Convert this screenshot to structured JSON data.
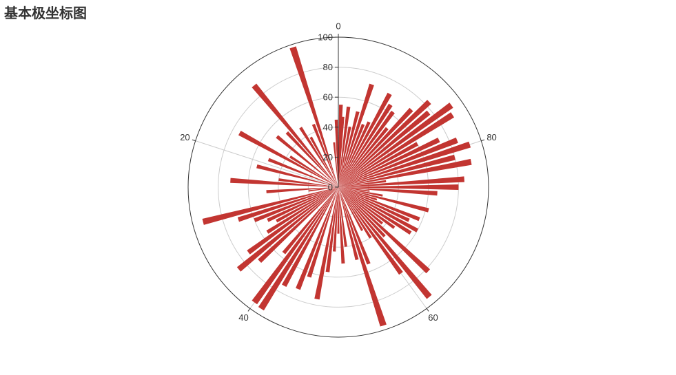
{
  "chart_data": {
    "type": "bar",
    "coordinate_system": "polar",
    "title": "基本极坐标图",
    "angle_axis": {
      "ticks": [
        "0",
        "20",
        "40",
        "60",
        "80"
      ],
      "min": 0,
      "max": 100,
      "direction": "counterclockwise"
    },
    "radius_axis": {
      "ticks": [
        "0",
        "20",
        "40",
        "60",
        "80",
        "100"
      ],
      "min": 0,
      "max": 100
    },
    "grid": true,
    "bar_color": "#c23531",
    "data": [
      [
        0.5,
        45
      ],
      [
        1.5,
        30
      ],
      [
        5,
        98
      ],
      [
        6,
        45
      ],
      [
        8,
        38
      ],
      [
        9,
        47
      ],
      [
        11,
        88
      ],
      [
        12,
        50
      ],
      [
        14,
        53
      ],
      [
        16,
        38
      ],
      [
        17,
        75
      ],
      [
        19,
        50
      ],
      [
        21,
        56
      ],
      [
        23,
        40
      ],
      [
        24,
        72
      ],
      [
        26,
        48
      ],
      [
        27,
        20
      ],
      [
        29,
        93
      ],
      [
        30,
        70
      ],
      [
        31,
        60
      ],
      [
        32,
        52
      ],
      [
        33,
        47
      ],
      [
        34,
        56
      ],
      [
        35,
        74
      ],
      [
        36,
        86
      ],
      [
        37,
        72
      ],
      [
        39,
        57
      ],
      [
        40,
        95
      ],
      [
        41,
        96
      ],
      [
        42,
        75
      ],
      [
        44,
        73
      ],
      [
        45,
        63
      ],
      [
        47,
        76
      ],
      [
        48,
        57
      ],
      [
        49,
        43
      ],
      [
        50,
        31
      ],
      [
        51,
        51
      ],
      [
        52,
        40
      ],
      [
        54,
        50
      ],
      [
        55,
        97
      ],
      [
        56,
        55
      ],
      [
        58,
        33
      ],
      [
        59,
        40
      ],
      [
        60,
        71
      ],
      [
        61,
        95
      ],
      [
        62,
        45
      ],
      [
        63,
        82
      ],
      [
        64,
        38
      ],
      [
        65,
        46
      ],
      [
        66,
        57
      ],
      [
        67,
        60
      ],
      [
        68,
        52
      ],
      [
        69,
        58
      ],
      [
        70,
        27
      ],
      [
        71,
        62
      ],
      [
        72,
        30
      ],
      [
        73,
        21
      ],
      [
        74,
        66
      ],
      [
        75,
        80
      ],
      [
        76,
        84
      ],
      [
        77,
        32
      ],
      [
        78,
        90
      ],
      [
        79,
        80
      ],
      [
        80,
        92
      ],
      [
        81,
        85
      ],
      [
        82,
        74
      ],
      [
        83,
        60
      ],
      [
        84,
        90
      ],
      [
        85,
        93
      ],
      [
        86,
        78
      ],
      [
        87,
        83
      ],
      [
        88,
        71
      ],
      [
        89,
        51
      ],
      [
        90,
        62
      ],
      [
        91,
        65
      ],
      [
        92,
        71
      ],
      [
        93,
        48
      ],
      [
        94,
        45
      ],
      [
        95,
        72
      ],
      [
        96,
        52
      ],
      [
        97,
        41
      ],
      [
        98,
        54
      ],
      [
        99,
        47
      ],
      [
        99.5,
        55
      ]
    ]
  }
}
